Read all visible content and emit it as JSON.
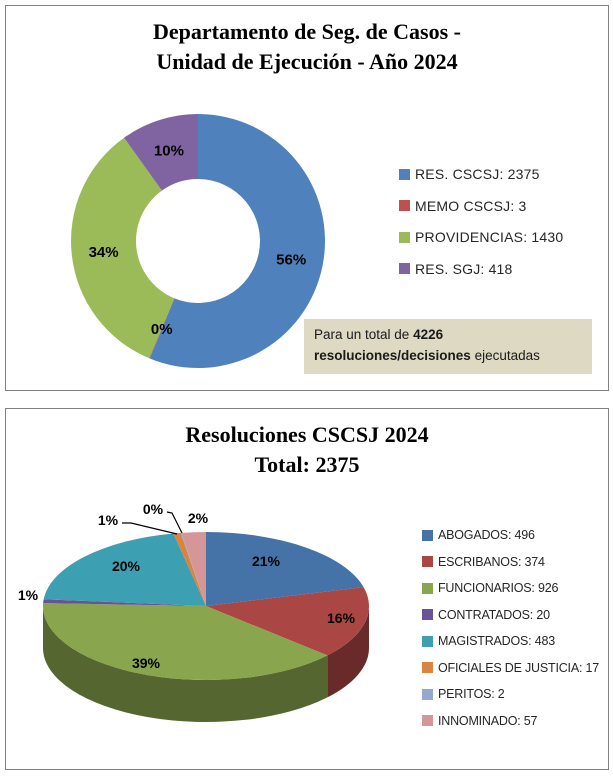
{
  "page": {
    "background": "#FFFFFF",
    "panel_border_color": "#808080"
  },
  "panels": {
    "ejecucion": {
      "title_lines": [
        "Departamento de Seg. de Casos -",
        "Unidad de Ejecución - Año 2024"
      ],
      "note": {
        "prefix": "Para un total de ",
        "bold": "4226 resoluciones/decisiones",
        "suffix": " ejecutadas",
        "background": "#DDD9C3"
      }
    },
    "resoluciones": {
      "title_lines": [
        "Resoluciones CSCSJ 2024",
        "Total: 2375"
      ]
    }
  },
  "chart_data": [
    {
      "type": "pie",
      "subtype": "donut",
      "title": "Departamento de Seg. de Casos - Unidad de Ejecución - Año 2024",
      "categories": [
        "RES. CSCSJ",
        "MEMO CSCSJ",
        "PROVIDENCIAS",
        "RES. SGJ"
      ],
      "values": [
        2375,
        3,
        1430,
        418
      ],
      "total": 4226,
      "percent_labels": [
        "56%",
        "0%",
        "34%",
        "10%"
      ],
      "colors": [
        "#4F81BD",
        "#C0504D",
        "#9BBB59",
        "#8064A2"
      ],
      "legend_entries": [
        "RES. CSCSJ: 2375",
        "MEMO CSCSJ: 3",
        "PROVIDENCIAS: 1430",
        "RES. SGJ: 418"
      ],
      "legend_position": "right",
      "annotation": "Para un total de 4226 resoluciones/decisiones ejecutadas"
    },
    {
      "type": "pie",
      "subtype": "pie-3d",
      "title": "Resoluciones CSCSJ 2024 Total: 2375",
      "categories": [
        "ABOGADOS",
        "ESCRIBANOS",
        "FUNCIONARIOS",
        "CONTRATADOS",
        "MAGISTRADOS",
        "OFICIALES DE JUSTICIA",
        "PERITOS",
        "INNOMINADO"
      ],
      "values": [
        496,
        374,
        926,
        20,
        483,
        17,
        2,
        57
      ],
      "total": 2375,
      "percent_labels": [
        "21%",
        "16%",
        "39%",
        "1%",
        "20%",
        "1%",
        "0%",
        "2%"
      ],
      "colors": [
        "#4572A7",
        "#AA4643",
        "#89A54E",
        "#6A5296",
        "#3C9FB2",
        "#DB843D",
        "#93A9CF",
        "#D59699"
      ],
      "legend_entries": [
        "ABOGADOS: 496",
        "ESCRIBANOS: 374",
        "FUNCIONARIOS: 926",
        "CONTRATADOS: 20",
        "MAGISTRADOS: 483",
        "OFICIALES DE JUSTICIA: 17",
        "PERITOS: 2",
        "INNOMINADO: 57"
      ],
      "legend_position": "right"
    }
  ]
}
